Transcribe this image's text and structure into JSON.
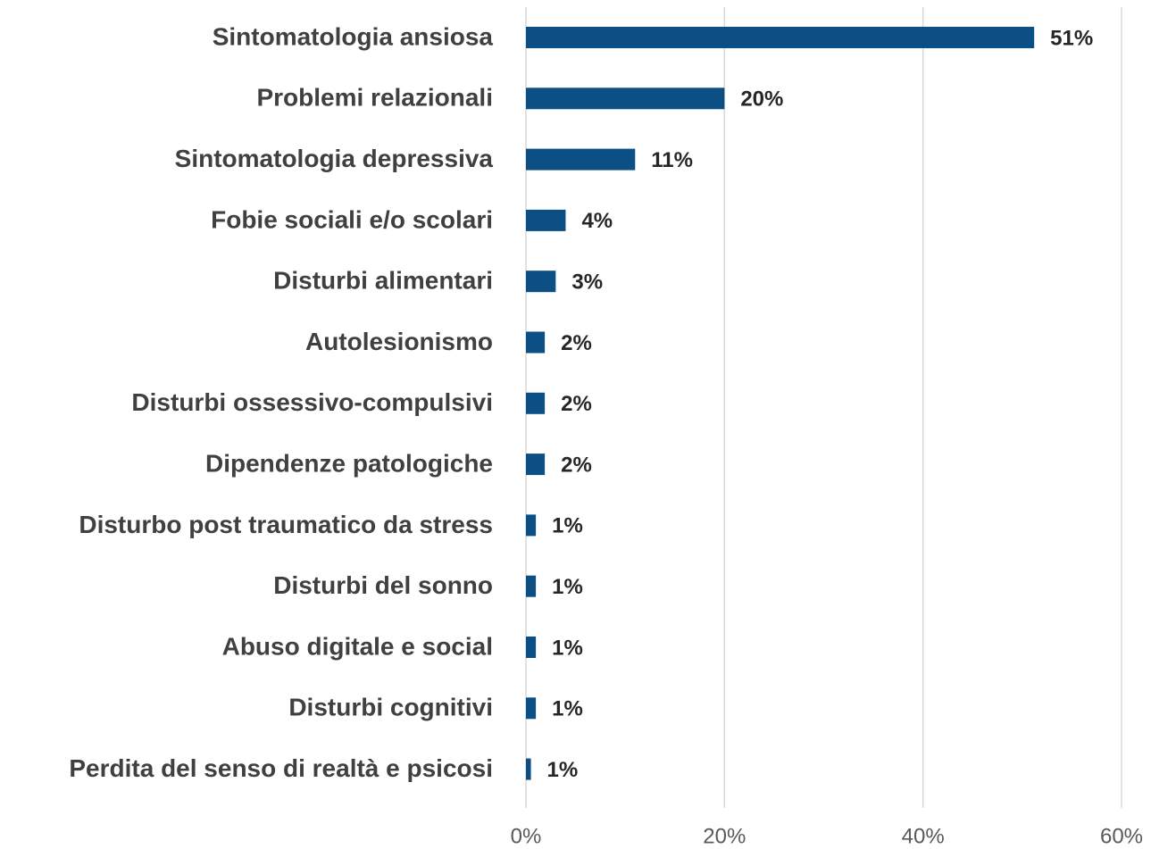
{
  "chart_data": {
    "type": "hbar",
    "categories": [
      "Sintomatologia ansiosa",
      "Problemi relazionali",
      "Sintomatologia depressiva",
      "Fobie sociali e/o scolari",
      "Disturbi alimentari",
      "Autolesionismo",
      "Disturbi ossessivo-compulsivi",
      "Dipendenze patologiche",
      "Disturbo post traumatico da stress",
      "Disturbi del sonno",
      "Abuso digitale e social",
      "Disturbi cognitivi",
      "Perdita del senso di realtà e psicosi"
    ],
    "values": [
      51.2,
      20,
      11,
      4,
      3,
      1.9,
      1.9,
      1.9,
      1,
      1,
      1,
      1,
      0.5
    ],
    "value_labels": [
      "51%",
      "20%",
      "11%",
      "4%",
      "3%",
      "2%",
      "2%",
      "2%",
      "1%",
      "1%",
      "1%",
      "1%",
      "1%"
    ],
    "color": "#0b4f84",
    "xlim": [
      0,
      60
    ],
    "xticks": [
      {
        "value": 0,
        "label": "0%"
      },
      {
        "value": 20,
        "label": "20%"
      },
      {
        "value": 40,
        "label": "40%"
      },
      {
        "value": 60,
        "label": "60%"
      }
    ],
    "grid": true
  }
}
